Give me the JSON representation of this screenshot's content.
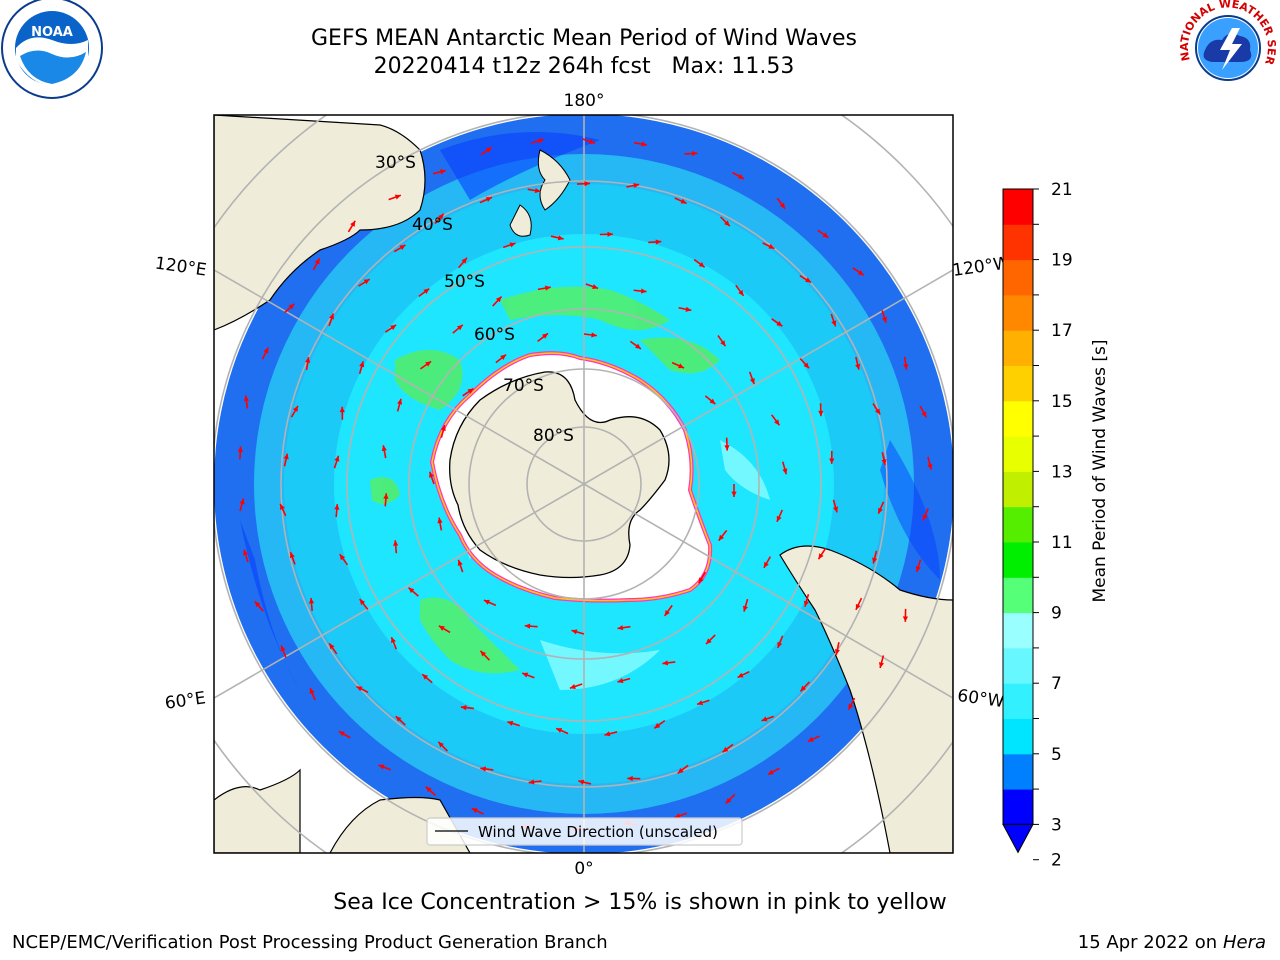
{
  "title": {
    "line1": "GEFS MEAN Antarctic Mean Period of Wind Waves",
    "line2": "20220414 t12z 264h fcst   Max: 11.53"
  },
  "subtitle": "Sea Ice Concentration > 15% is shown in pink to yellow",
  "footer": {
    "left": "NCEP/EMC/Verification Post Processing Product Generation Branch",
    "right_date": "15 Apr 2022 on ",
    "right_host": "Hera"
  },
  "logos": {
    "left": {
      "name": "noaa-logo",
      "text": "NOAA"
    },
    "right": {
      "name": "nws-logo",
      "text": "NATIONAL WEATHER SERVICE"
    }
  },
  "map": {
    "projection": "south-polar-stereographic",
    "longitude_labels": [
      "180°",
      "120°E",
      "120°W",
      "60°E",
      "60°W",
      "0°"
    ],
    "latitude_labels": [
      "30°S",
      "40°S",
      "50°S",
      "60°S",
      "70°S",
      "80°S"
    ],
    "legend_label": "Wind Wave Direction (unscaled)",
    "arrow_color": "#ff0000",
    "land_color": "#efedd9"
  },
  "colorbar": {
    "label": "Mean Period of Wind Waves [s]",
    "ticks": [
      "21",
      "20",
      "19",
      "18",
      "17",
      "16",
      "15",
      "14",
      "13",
      "12",
      "11",
      "10",
      "9",
      "8",
      "7",
      "6",
      "5",
      "4",
      "3",
      "2"
    ],
    "colors": [
      "#0000ff",
      "#0080ff",
      "#00e5ff",
      "#33f0ff",
      "#66f7ff",
      "#99ffff",
      "#55ff77",
      "#00ee00",
      "#55ee00",
      "#c0f000",
      "#e8ff00",
      "#ffff00",
      "#ffd000",
      "#ffb000",
      "#ff8800",
      "#ff6600",
      "#ff3300",
      "#ff0000"
    ],
    "under_color": "#0000ff"
  }
}
